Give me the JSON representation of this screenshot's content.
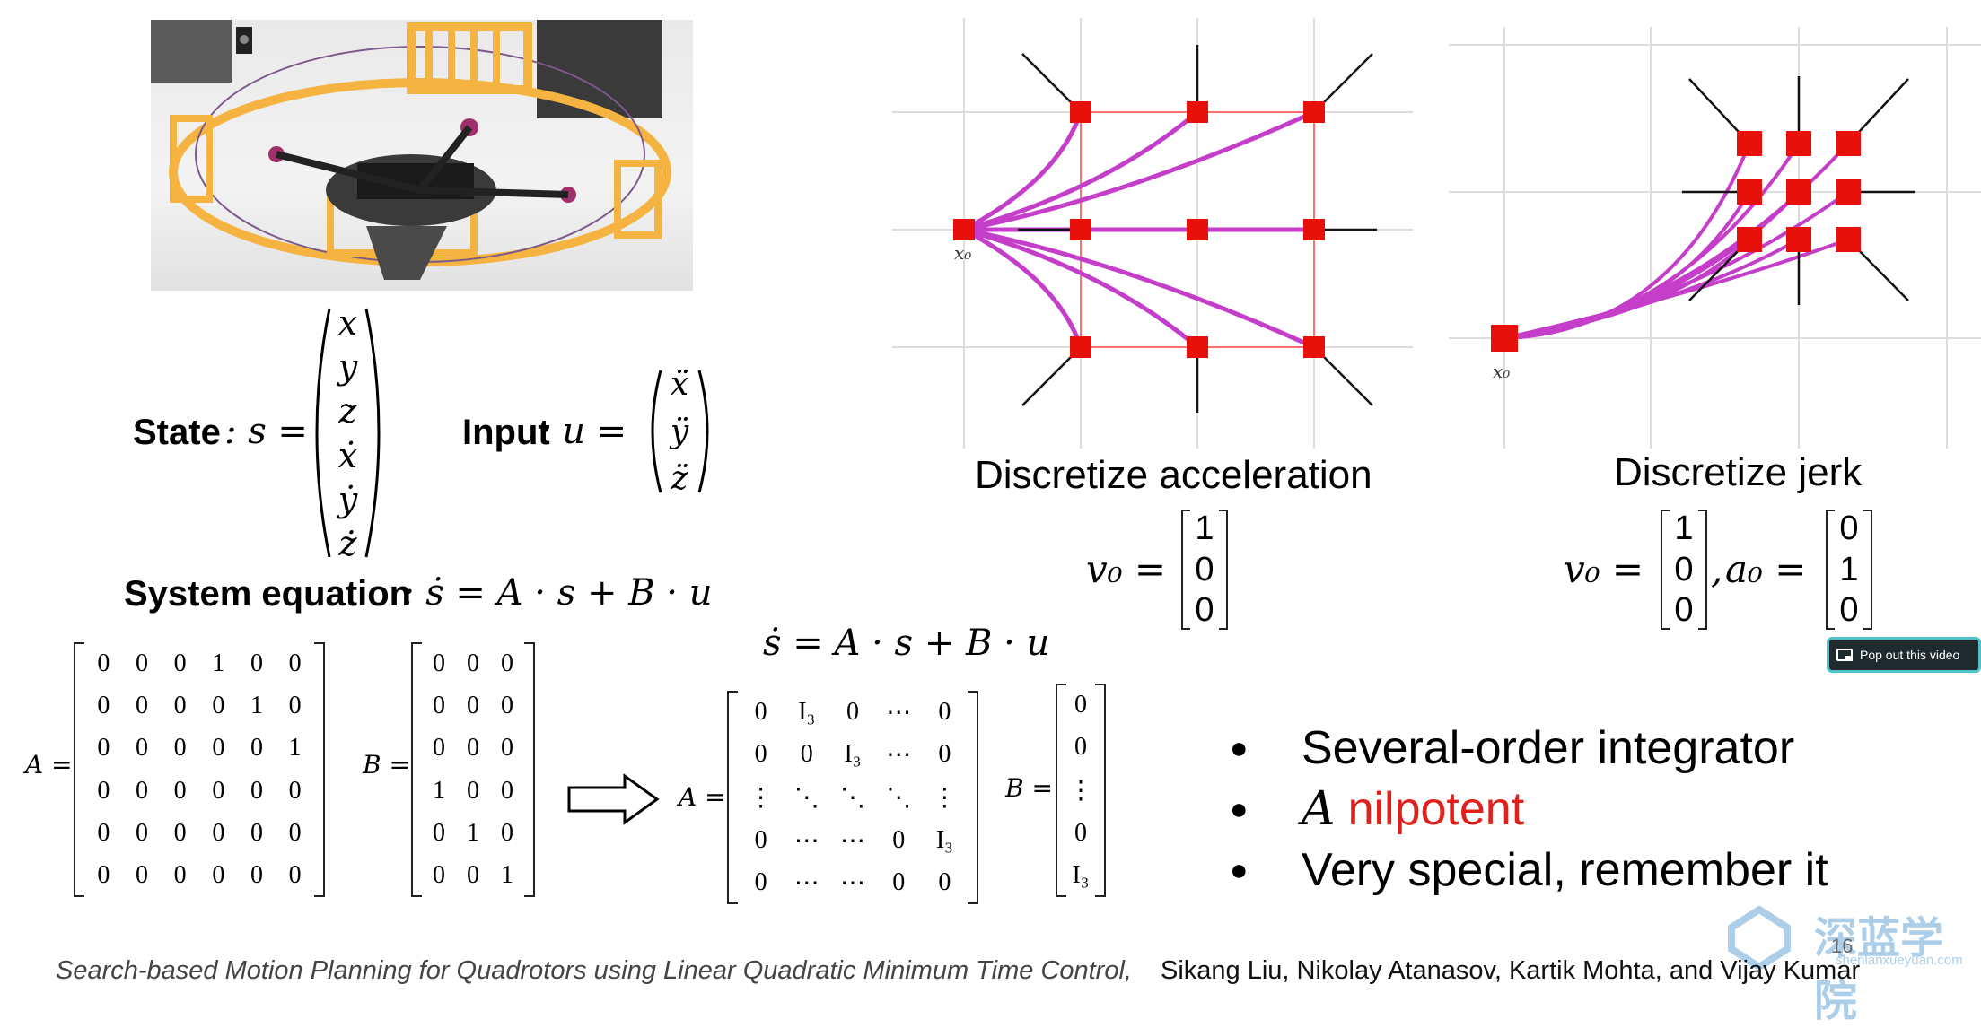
{
  "slide": {
    "state_label": "State",
    "state_eq": ": s =",
    "state_vector": [
      "x",
      "y",
      "z",
      "ẋ",
      "ẏ",
      "ż"
    ],
    "input_label": "Input",
    "input_eq": ": u =",
    "input_vector": [
      "ẍ",
      "ÿ",
      "z̈"
    ],
    "system_label": "System equation",
    "system_eq": ": ṡ = A · s + B · u",
    "matrix_A_label": "A =",
    "matrix_A": [
      [
        "0",
        "0",
        "0",
        "1",
        "0",
        "0"
      ],
      [
        "0",
        "0",
        "0",
        "0",
        "1",
        "0"
      ],
      [
        "0",
        "0",
        "0",
        "0",
        "0",
        "1"
      ],
      [
        "0",
        "0",
        "0",
        "0",
        "0",
        "0"
      ],
      [
        "0",
        "0",
        "0",
        "0",
        "0",
        "0"
      ],
      [
        "0",
        "0",
        "0",
        "0",
        "0",
        "0"
      ]
    ],
    "matrix_B_label": "B =",
    "matrix_B": [
      [
        "0",
        "0",
        "0"
      ],
      [
        "0",
        "0",
        "0"
      ],
      [
        "0",
        "0",
        "0"
      ],
      [
        "1",
        "0",
        "0"
      ],
      [
        "0",
        "1",
        "0"
      ],
      [
        "0",
        "0",
        "1"
      ]
    ],
    "compact_eq": "ṡ = A · s + B · u",
    "compact_A_label": "A =",
    "compact_A": [
      [
        "0",
        "I₃",
        "0",
        "⋯",
        "0"
      ],
      [
        "0",
        "0",
        "I₃",
        "⋯",
        "0"
      ],
      [
        "⋮",
        "⋱",
        "⋱",
        "⋱",
        "⋮"
      ],
      [
        "0",
        "⋯",
        "⋯",
        "0",
        "I₃"
      ],
      [
        "0",
        "⋯",
        "⋯",
        "0",
        "0"
      ]
    ],
    "compact_B_label": "B =",
    "compact_B": [
      "0",
      "0",
      "⋮",
      "0",
      "I₃"
    ],
    "accel_caption": "Discretize acceleration",
    "accel_v0_label": "v₀ =",
    "accel_v0": [
      "1",
      "0",
      "0"
    ],
    "accel_x0": "x₀",
    "jerk_caption": "Discretize jerk",
    "jerk_v0_label": "v₀ =",
    "jerk_v0": [
      "1",
      "0",
      "0"
    ],
    "jerk_sep": ",",
    "jerk_a0_label": "a₀ =",
    "jerk_a0": [
      "0",
      "1",
      "0"
    ],
    "jerk_x0": "x₀",
    "bullets": [
      {
        "prefix": "",
        "text": "Several-order integrator",
        "color": "#000000"
      },
      {
        "prefix": "A",
        "text": "nilpotent",
        "color": "#e0201b"
      },
      {
        "prefix": "",
        "text": "Very special, remember it",
        "color": "#000000"
      }
    ],
    "citation_title": "Search-based Motion Planning for Quadrotors using Linear Quadratic Minimum Time Control,",
    "citation_authors": "Sikang Liu, Nikolay Atanasov, Kartik Mohta, and Vijay Kumar",
    "page_number": "16",
    "watermark_text": "深蓝学院",
    "watermark_url": "shenlanxueyuan.com"
  },
  "popout": {
    "label": "Pop out this video"
  },
  "colors": {
    "node": "#e8100a",
    "edge": "#ff5a5a",
    "curve": "#c53ec9",
    "accent": "#e0201b"
  },
  "icons": {
    "popout": "popout-icon",
    "arrow": "right-arrow-icon"
  }
}
